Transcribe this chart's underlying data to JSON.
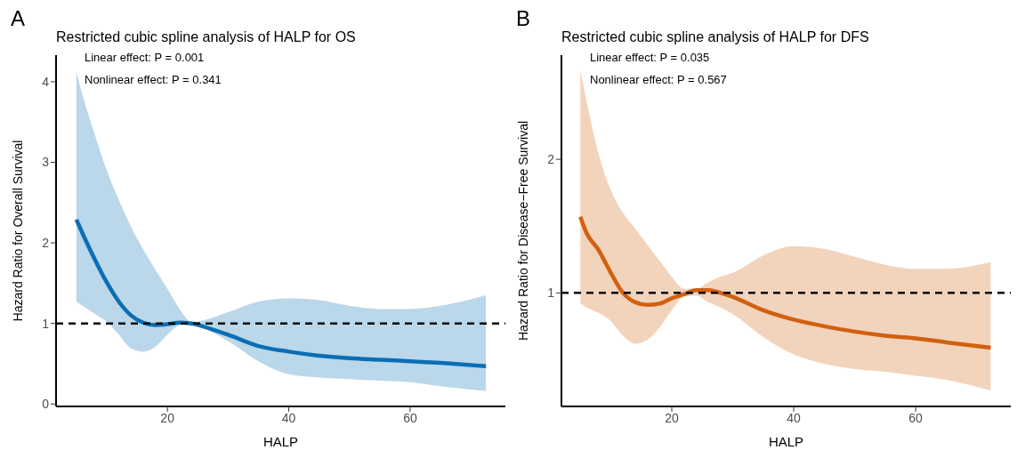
{
  "chart_data": [
    {
      "type": "line",
      "title": "Restricted cubic spline analysis of HALP for OS",
      "xlabel": "HALP",
      "ylabel": "Hazard Ratio for Overall Survival",
      "annotations": [
        "A",
        "Linear effect: P = 0.001",
        "Nonlinear effect: P = 0.341"
      ],
      "x": [
        5,
        6,
        8,
        10,
        12,
        14,
        16,
        18,
        20,
        22,
        24,
        26,
        30,
        35,
        40,
        45,
        50,
        55,
        60,
        65,
        72.5
      ],
      "series": [
        {
          "color": "#0b6eb4",
          "values": [
            2.29,
            2.12,
            1.8,
            1.51,
            1.27,
            1.1,
            1.01,
            0.98,
            0.99,
            1.01,
            1.0,
            0.96,
            0.86,
            0.72,
            0.65,
            0.6,
            0.57,
            0.55,
            0.53,
            0.51,
            0.47
          ],
          "upper": [
            4.12,
            3.84,
            3.35,
            2.9,
            2.53,
            2.2,
            1.92,
            1.67,
            1.43,
            1.18,
            1.02,
            1.04,
            1.14,
            1.27,
            1.31,
            1.29,
            1.22,
            1.18,
            1.18,
            1.22,
            1.35
          ],
          "lower": [
            1.27,
            1.22,
            1.12,
            1.02,
            0.86,
            0.69,
            0.65,
            0.71,
            0.86,
            0.98,
            1.0,
            0.94,
            0.78,
            0.53,
            0.37,
            0.33,
            0.31,
            0.29,
            0.27,
            0.22,
            0.16
          ]
        }
      ],
      "xlim": [
        1.65,
        75.7
      ],
      "xticks": [
        20,
        40,
        60
      ],
      "ylim": [
        -0.03,
        4.33
      ],
      "yticks": [
        0,
        1,
        2,
        3,
        4
      ],
      "ref_lines": [
        {
          "axis": "y",
          "value": 1,
          "color": "#000000",
          "line_style": "dashed"
        }
      ],
      "grid": false,
      "legend": false,
      "marker": "none",
      "line_style": "solid"
    },
    {
      "type": "line",
      "title": "Restricted cubic spline analysis of HALP for DFS",
      "xlabel": "HALP",
      "ylabel": "Hazard Ratio for Disease−Free Survival",
      "annotations": [
        "B",
        "Linear effect: P = 0.035",
        "Nonlinear effect: P = 0.567"
      ],
      "x": [
        5,
        6,
        8,
        10,
        12,
        14,
        16,
        18,
        20,
        22,
        24,
        26,
        28,
        30,
        35,
        40,
        45,
        50,
        55,
        60,
        65,
        72.3
      ],
      "series": [
        {
          "color": "#d2600f",
          "values": [
            1.57,
            1.45,
            1.32,
            1.15,
            1.0,
            0.93,
            0.91,
            0.92,
            0.96,
            0.99,
            1.02,
            1.02,
            1.0,
            0.97,
            0.87,
            0.8,
            0.75,
            0.71,
            0.68,
            0.66,
            0.63,
            0.59
          ],
          "upper": [
            2.67,
            2.44,
            2.04,
            1.77,
            1.6,
            1.48,
            1.36,
            1.24,
            1.12,
            1.03,
            1.03,
            1.08,
            1.12,
            1.15,
            1.28,
            1.35,
            1.33,
            1.27,
            1.21,
            1.18,
            1.18,
            1.23
          ],
          "lower": [
            0.92,
            0.89,
            0.85,
            0.79,
            0.68,
            0.62,
            0.65,
            0.74,
            0.87,
            0.97,
            0.98,
            0.93,
            0.89,
            0.84,
            0.67,
            0.54,
            0.47,
            0.43,
            0.41,
            0.38,
            0.35,
            0.27
          ]
        }
      ],
      "xlim": [
        1.9,
        75.6
      ],
      "xticks": [
        20,
        40,
        60
      ],
      "ylim": [
        0.15,
        2.78
      ],
      "yticks": [
        1,
        2
      ],
      "ref_lines": [
        {
          "axis": "y",
          "value": 1,
          "color": "#000000",
          "line_style": "dashed"
        }
      ],
      "grid": false,
      "legend": false,
      "marker": "none",
      "line_style": "solid"
    }
  ]
}
